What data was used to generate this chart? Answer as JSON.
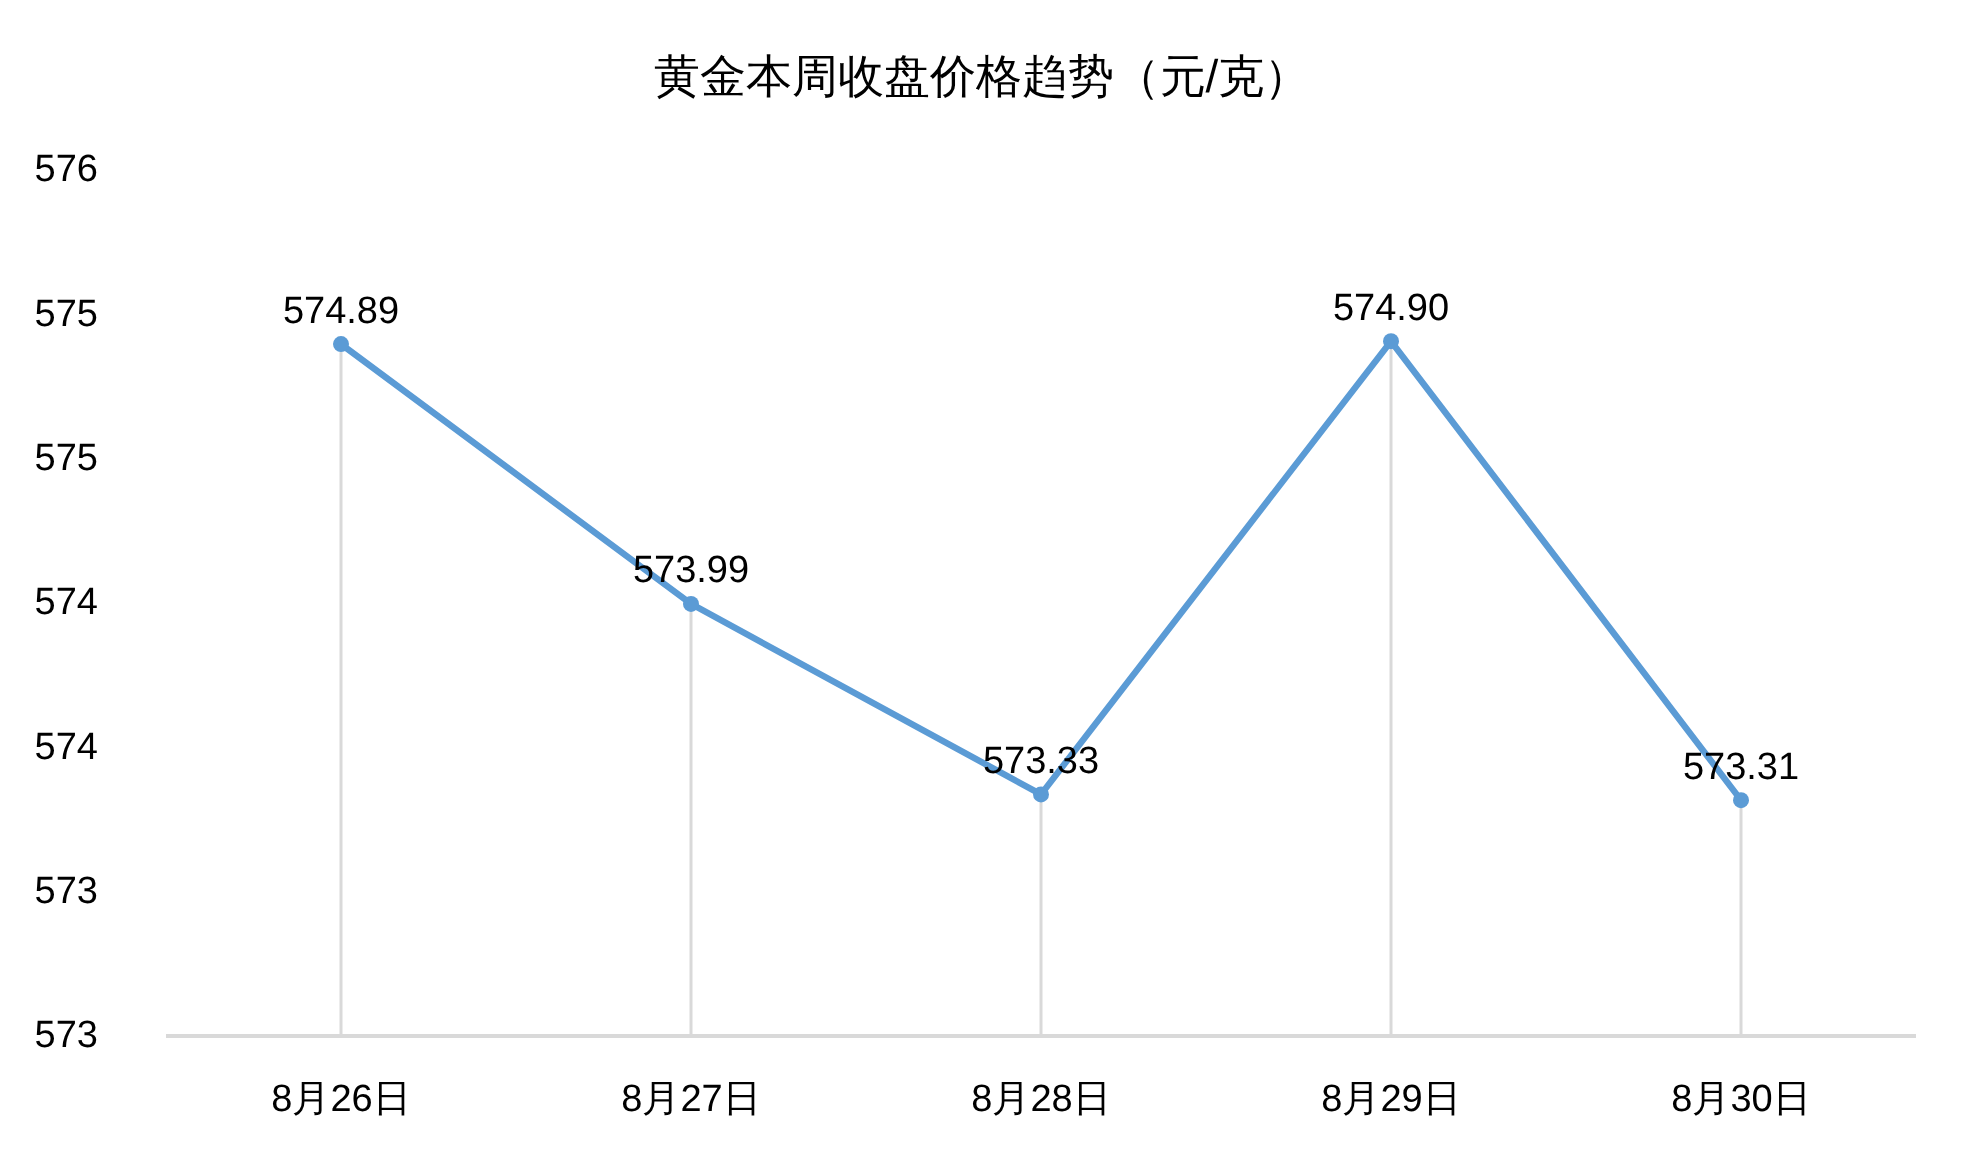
{
  "chart_data": {
    "type": "line",
    "title": "黄金本周收盘价格趋势（元/克）",
    "categories": [
      "8月26日",
      "8月27日",
      "8月28日",
      "8月29日",
      "8月30日"
    ],
    "series": [
      {
        "color": "#5b9bd5",
        "values": [
          574.89,
          573.99,
          573.33,
          574.9,
          573.31
        ],
        "value_labels": [
          "574.89",
          "573.99",
          "573.33",
          "574.90",
          "573.31"
        ]
      }
    ],
    "ylim": [
      572.5,
      575.5
    ],
    "yticks": [
      {
        "value": 572.5,
        "label": "573"
      },
      573,
      {
        "value": 573.5,
        "label": "574"
      },
      574,
      {
        "value": 574.5,
        "label": "575"
      },
      575,
      {
        "value": 575.5,
        "label": "576"
      }
    ],
    "marker": "circle",
    "line_style": "solid"
  }
}
